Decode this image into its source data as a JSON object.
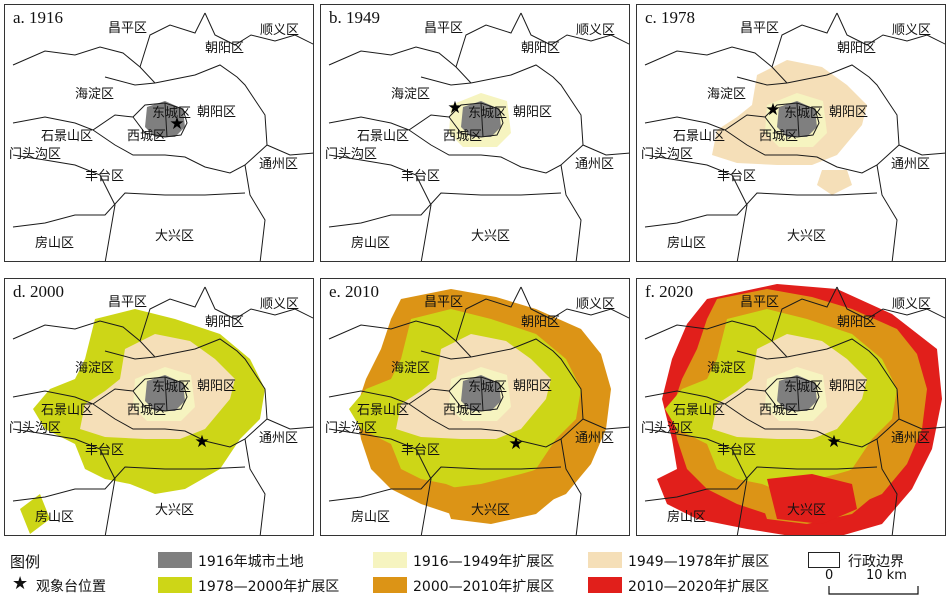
{
  "panels": [
    {
      "title": "a. 1916"
    },
    {
      "title": "b. 1949"
    },
    {
      "title": "c. 1978"
    },
    {
      "title": "d. 2000"
    },
    {
      "title": "e. 2010"
    },
    {
      "title": "f. 2020"
    }
  ],
  "districts": {
    "changping": "昌平区",
    "shunyi": "顺义区",
    "chaoyang1": "朝阳区",
    "haidian": "海淀区",
    "dongcheng": "东城区",
    "chaoyang2": "朝阳区",
    "shijingshan": "石景山区",
    "xicheng": "西城区",
    "mentougou": "门头沟区",
    "tongzhou": "通州区",
    "fengtai": "丰台区",
    "fangshan": "房山区",
    "daxing": "大兴区"
  },
  "legend": {
    "title": "图例",
    "items": [
      {
        "label": "1916年城市土地",
        "color": "#7f7f7f"
      },
      {
        "label": "1916—1949年扩展区",
        "color": "#f6f4c0"
      },
      {
        "label": "1949—1978年扩展区",
        "color": "#f5dfb8"
      },
      {
        "label": "1978—2000年扩展区",
        "color": "#cdd617"
      },
      {
        "label": "2000—2010年扩展区",
        "color": "#dc9416"
      },
      {
        "label": "2010—2020年扩展区",
        "color": "#e11f1b"
      }
    ],
    "observatory": "观象台位置",
    "boundary": "行政边界",
    "scale_zero": "0",
    "scale_ten": "10 km"
  }
}
